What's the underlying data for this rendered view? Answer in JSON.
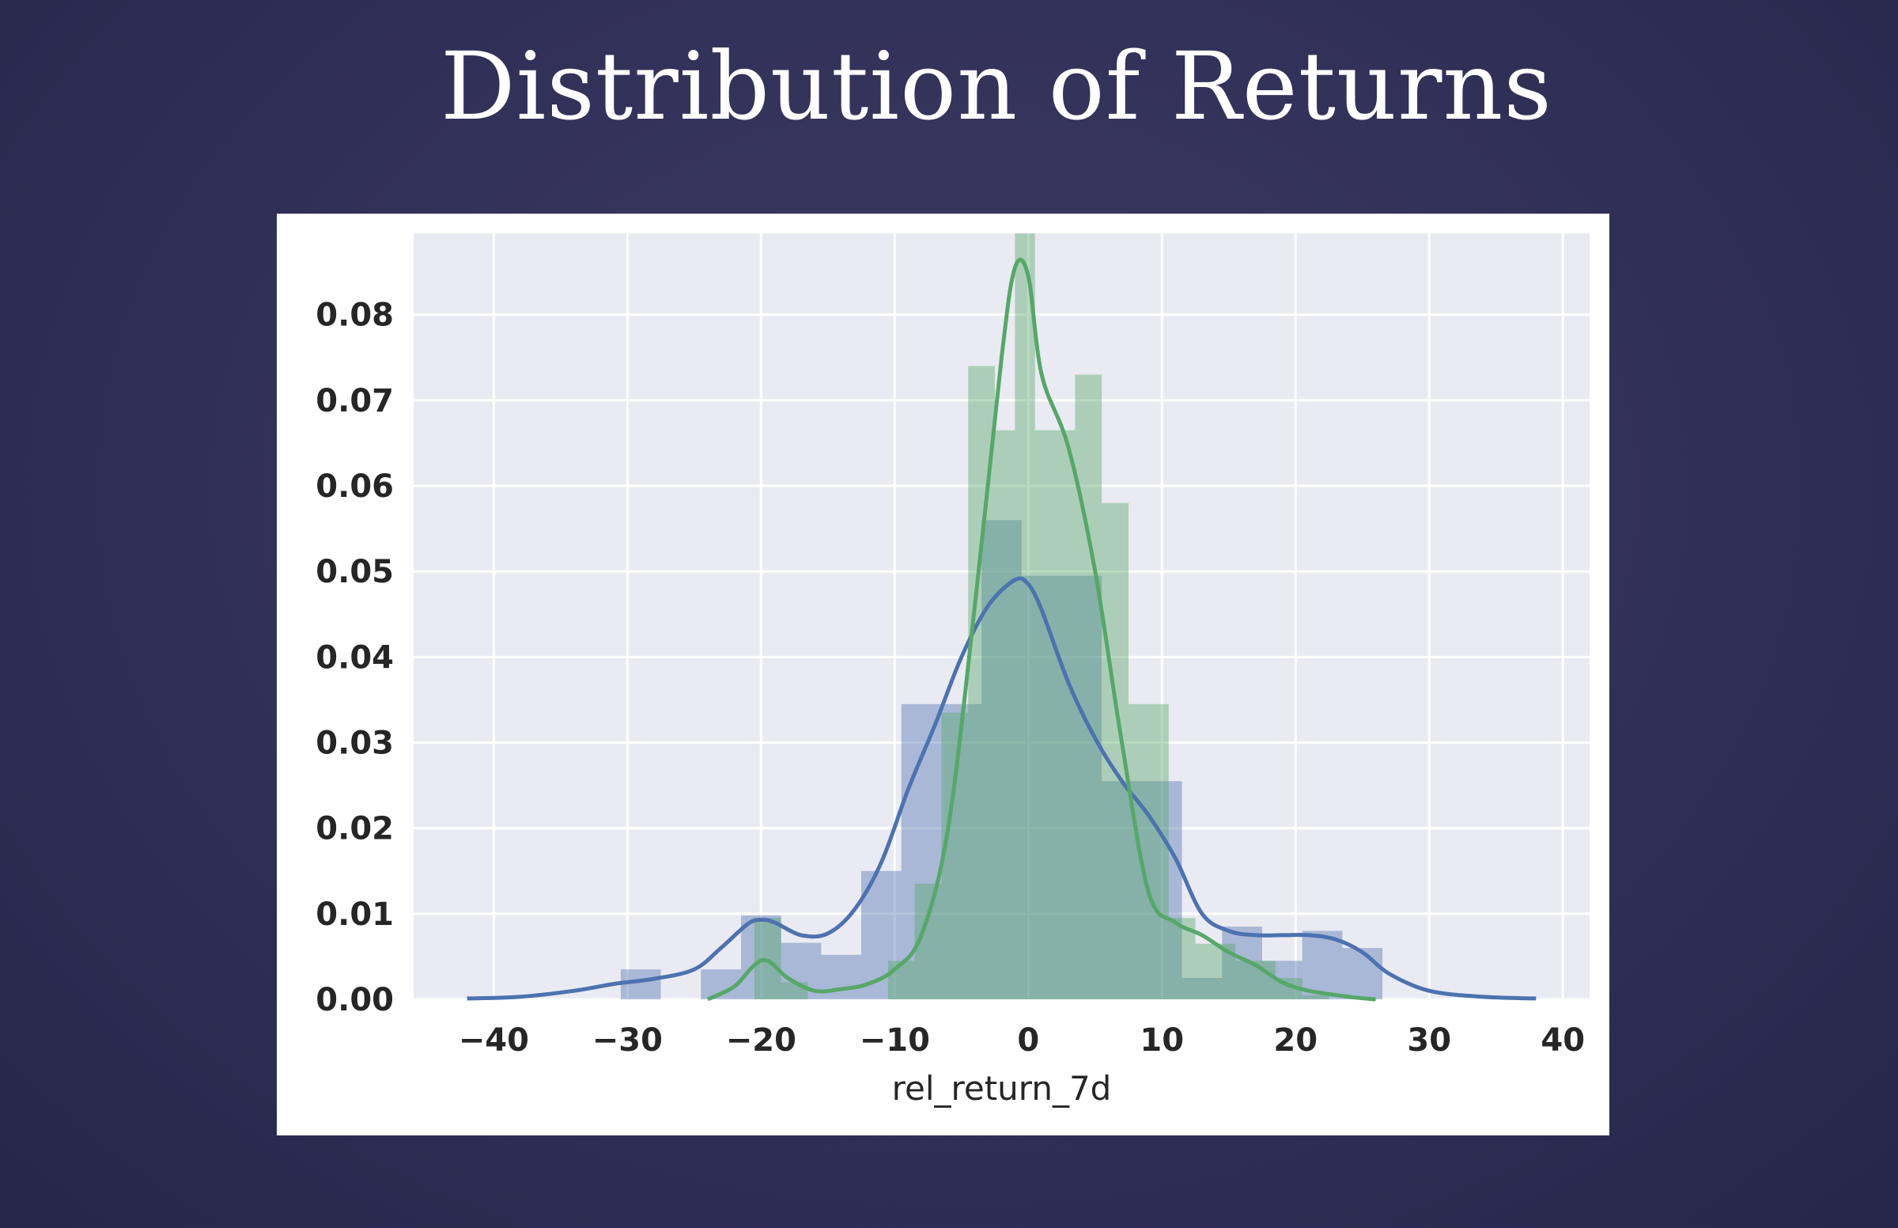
{
  "slide": {
    "title": "Distribution of Returns"
  },
  "chart_data": {
    "type": "histogram+kde",
    "title": "",
    "xlabel": "rel_return_7d",
    "ylabel": "",
    "xlim": [
      -46,
      42
    ],
    "ylim": [
      0,
      0.0895
    ],
    "xticks": [
      -40,
      -30,
      -20,
      -10,
      0,
      10,
      20,
      30,
      40
    ],
    "xtick_labels": [
      "−40",
      "−30",
      "−20",
      "−10",
      "0",
      "10",
      "20",
      "30",
      "40"
    ],
    "yticks": [
      0.0,
      0.01,
      0.02,
      0.03,
      0.04,
      0.05,
      0.06,
      0.07,
      0.08
    ],
    "ytick_labels": [
      "0.00",
      "0.01",
      "0.02",
      "0.03",
      "0.04",
      "0.05",
      "0.06",
      "0.07",
      "0.08"
    ],
    "grid": true,
    "background": "#eaeaf2",
    "series": [
      {
        "color": "#4c72b0",
        "bars": [
          {
            "x0": -30.5,
            "x1": -27.5,
            "h": 0.0035
          },
          {
            "x0": -24.5,
            "x1": -21.5,
            "h": 0.0035
          },
          {
            "x0": -21.5,
            "x1": -18.5,
            "h": 0.0098
          },
          {
            "x0": -18.5,
            "x1": -15.5,
            "h": 0.0066
          },
          {
            "x0": -15.5,
            "x1": -12.5,
            "h": 0.0052
          },
          {
            "x0": -12.5,
            "x1": -9.5,
            "h": 0.015
          },
          {
            "x0": -9.5,
            "x1": -6.5,
            "h": 0.0345
          },
          {
            "x0": -6.5,
            "x1": -3.5,
            "h": 0.0345
          },
          {
            "x0": -3.5,
            "x1": -0.5,
            "h": 0.056
          },
          {
            "x0": -0.5,
            "x1": 2.5,
            "h": 0.0495
          },
          {
            "x0": 2.5,
            "x1": 5.5,
            "h": 0.0495
          },
          {
            "x0": 5.5,
            "x1": 8.5,
            "h": 0.0255
          },
          {
            "x0": 8.5,
            "x1": 11.5,
            "h": 0.0255
          },
          {
            "x0": 11.5,
            "x1": 14.5,
            "h": 0.0025
          },
          {
            "x0": 14.5,
            "x1": 17.5,
            "h": 0.0085
          },
          {
            "x0": 17.5,
            "x1": 20.5,
            "h": 0.0045
          },
          {
            "x0": 20.5,
            "x1": 23.5,
            "h": 0.008
          },
          {
            "x0": 23.5,
            "x1": 26.5,
            "h": 0.006
          }
        ],
        "kde": {
          "x": [
            -42,
            -38,
            -34,
            -31,
            -28,
            -25,
            -23,
            -21,
            -20,
            -19,
            -17,
            -15,
            -13,
            -11,
            -9,
            -7,
            -5,
            -3,
            -1,
            0,
            1,
            3,
            5,
            7,
            9,
            11,
            13,
            15,
            17,
            19,
            21,
            23,
            25,
            27,
            30,
            34,
            38
          ],
          "y": [
            0.0001,
            0.0003,
            0.001,
            0.0018,
            0.0024,
            0.0035,
            0.006,
            0.0088,
            0.0093,
            0.009,
            0.0075,
            0.0077,
            0.0105,
            0.016,
            0.0245,
            0.032,
            0.04,
            0.046,
            0.049,
            0.0485,
            0.0455,
            0.037,
            0.0305,
            0.0255,
            0.0215,
            0.0165,
            0.01,
            0.008,
            0.0075,
            0.0075,
            0.0075,
            0.007,
            0.0055,
            0.003,
            0.001,
            0.0003,
            0.0001
          ]
        }
      },
      {
        "color": "#55a868",
        "bars": [
          {
            "x0": -20.5,
            "x1": -18.5,
            "h": 0.0095
          },
          {
            "x0": -18.5,
            "x1": -16.5,
            "h": 0.002
          },
          {
            "x0": -10.5,
            "x1": -8.5,
            "h": 0.0045
          },
          {
            "x0": -8.5,
            "x1": -6.5,
            "h": 0.0135
          },
          {
            "x0": -6.5,
            "x1": -4.5,
            "h": 0.0335
          },
          {
            "x0": -4.5,
            "x1": -2.5,
            "h": 0.074
          },
          {
            "x0": -2.5,
            "x1": -1.0,
            "h": 0.0665
          },
          {
            "x0": -1.0,
            "x1": 0.5,
            "h": 0.093
          },
          {
            "x0": 0.5,
            "x1": 3.5,
            "h": 0.0665
          },
          {
            "x0": 3.5,
            "x1": 5.5,
            "h": 0.073
          },
          {
            "x0": 5.5,
            "x1": 7.5,
            "h": 0.058
          },
          {
            "x0": 7.5,
            "x1": 10.5,
            "h": 0.0345
          },
          {
            "x0": 10.5,
            "x1": 12.5,
            "h": 0.0095
          },
          {
            "x0": 12.5,
            "x1": 15.5,
            "h": 0.0065
          },
          {
            "x0": 15.5,
            "x1": 18.5,
            "h": 0.0045
          },
          {
            "x0": 18.5,
            "x1": 20.5,
            "h": 0.0025
          },
          {
            "x0": 20.5,
            "x1": 22.5,
            "h": 0.0005
          }
        ],
        "kde": {
          "x": [
            -24,
            -22,
            -20.5,
            -19.5,
            -18,
            -16,
            -14,
            -12,
            -10,
            -8,
            -6,
            -4,
            -2,
            -1,
            0,
            1,
            3,
            5,
            7,
            9,
            11,
            13,
            15,
            17,
            19,
            21,
            24,
            26
          ],
          "y": [
            0.0,
            0.0015,
            0.004,
            0.0045,
            0.0025,
            0.001,
            0.0012,
            0.0018,
            0.0035,
            0.0075,
            0.02,
            0.046,
            0.075,
            0.0855,
            0.0845,
            0.073,
            0.0645,
            0.05,
            0.03,
            0.0125,
            0.009,
            0.0075,
            0.0055,
            0.004,
            0.002,
            0.001,
            0.0003,
            0.0
          ]
        }
      }
    ]
  }
}
